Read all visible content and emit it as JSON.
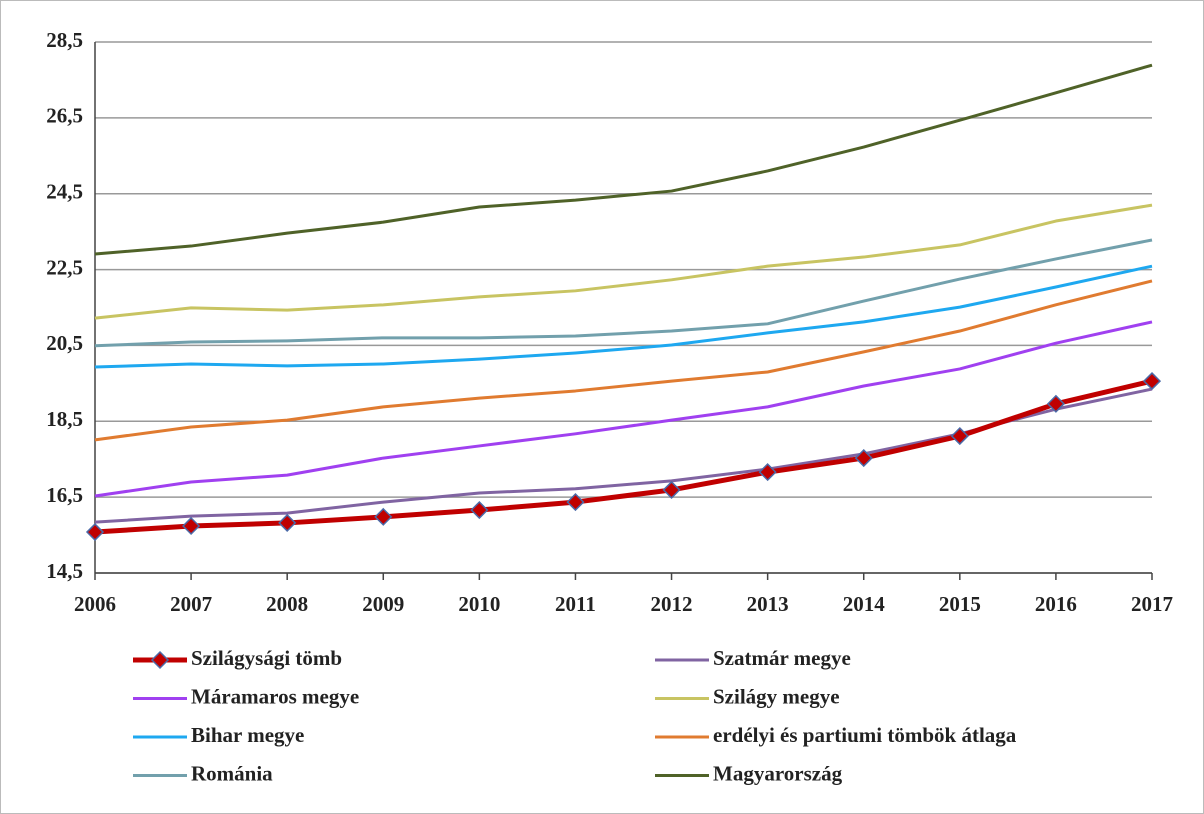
{
  "chart_data": {
    "type": "line",
    "categories": [
      "2006",
      "2007",
      "2008",
      "2009",
      "2010",
      "2011",
      "2012",
      "2013",
      "2014",
      "2015",
      "2016",
      "2017"
    ],
    "ylim": [
      14.5,
      28.5
    ],
    "yticks": [
      {
        "value": 14.5,
        "label": "14,5"
      },
      {
        "value": 16.5,
        "label": "16,5"
      },
      {
        "value": 18.5,
        "label": "18,5"
      },
      {
        "value": 20.5,
        "label": "20,5"
      },
      {
        "value": 22.5,
        "label": "22,5"
      },
      {
        "value": 24.5,
        "label": "24,5"
      },
      {
        "value": 26.5,
        "label": "26,5"
      },
      {
        "value": 28.5,
        "label": "28,5"
      }
    ],
    "grid": true,
    "legend": "bottom",
    "series": [
      {
        "name": "Szilágysági tömb",
        "color": "#c00000",
        "marker": "diamond",
        "values": [
          15.58,
          15.74,
          15.82,
          15.98,
          16.16,
          16.37,
          16.69,
          17.16,
          17.53,
          18.11,
          18.96,
          19.56
        ]
      },
      {
        "name": "Szatmár megye",
        "color": "#8064a2",
        "values": [
          15.84,
          16.0,
          16.08,
          16.37,
          16.61,
          16.72,
          16.93,
          17.24,
          17.64,
          18.17,
          18.82,
          19.35
        ]
      },
      {
        "name": "Máramaros megye",
        "color": "#a040f0",
        "values": [
          16.53,
          16.9,
          17.08,
          17.53,
          17.85,
          18.17,
          18.53,
          18.88,
          19.43,
          19.88,
          20.56,
          21.12
        ]
      },
      {
        "name": "Szilágy megye",
        "color": "#c8c462",
        "values": [
          21.22,
          21.49,
          21.43,
          21.57,
          21.78,
          21.94,
          22.23,
          22.59,
          22.83,
          23.15,
          23.78,
          24.2
        ]
      },
      {
        "name": "Bihar megye",
        "color": "#1ea8f0",
        "values": [
          19.93,
          20.01,
          19.96,
          20.01,
          20.14,
          20.3,
          20.51,
          20.83,
          21.12,
          21.51,
          22.04,
          22.59
        ]
      },
      {
        "name": "erdélyi és partiumi tömbök átlaga",
        "color": "#e07b30",
        "values": [
          18.01,
          18.35,
          18.53,
          18.88,
          19.11,
          19.3,
          19.56,
          19.8,
          20.33,
          20.88,
          21.57,
          22.2
        ]
      },
      {
        "name": "Románia",
        "color": "#72a0ac",
        "values": [
          20.49,
          20.59,
          20.62,
          20.7,
          20.7,
          20.75,
          20.88,
          21.07,
          21.67,
          22.25,
          22.78,
          23.28
        ]
      },
      {
        "name": "Magyarország",
        "color": "#4f6228",
        "values": [
          22.91,
          23.12,
          23.46,
          23.75,
          24.15,
          24.33,
          24.57,
          25.1,
          25.73,
          26.44,
          27.16,
          27.89
        ]
      }
    ]
  }
}
